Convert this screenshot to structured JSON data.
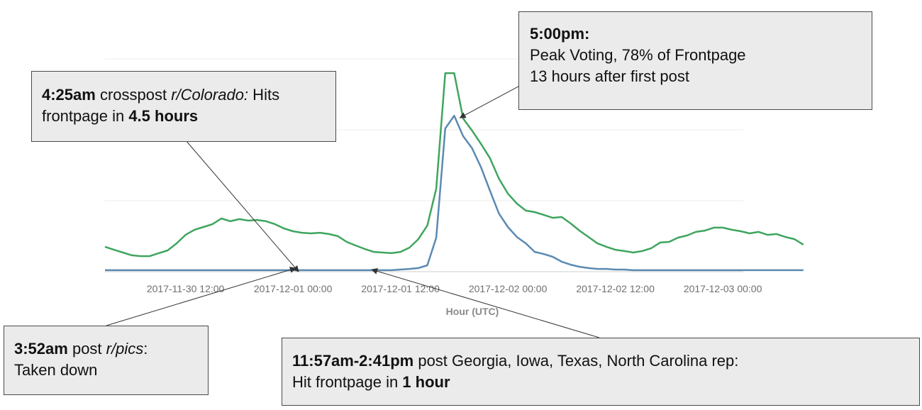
{
  "chart_data": {
    "type": "line",
    "xlabel": "Hour (UTC)",
    "ylabel": "",
    "x_start": "2017-11-30 03:00",
    "x_step_hours": 1,
    "xticks": [
      "2017-11-30 12:00",
      "2017-12-01 00:00",
      "2017-12-01 12:00",
      "2017-12-02 00:00",
      "2017-12-02 12:00",
      "2017-12-03 00:00"
    ],
    "ylim": [
      0,
      100
    ],
    "grid": true,
    "series": [
      {
        "color": "#3fa55e",
        "values": [
          11.7,
          10.3,
          9.0,
          7.7,
          7.3,
          7.3,
          8.7,
          10.0,
          13.3,
          17.3,
          19.7,
          21.0,
          22.3,
          25.0,
          23.7,
          24.7,
          24.0,
          24.3,
          23.7,
          22.3,
          20.3,
          19.0,
          18.3,
          18.0,
          18.3,
          17.7,
          16.7,
          14.0,
          12.3,
          10.7,
          9.3,
          9.0,
          8.7,
          9.3,
          11.3,
          15.3,
          21.7,
          39.0,
          93.3,
          93.3,
          72.0,
          66.3,
          60.0,
          53.3,
          43.7,
          36.7,
          32.0,
          28.7,
          28.0,
          26.7,
          25.3,
          25.7,
          22.7,
          19.3,
          16.3,
          13.3,
          11.7,
          10.3,
          9.7,
          9.0,
          9.7,
          11.0,
          13.7,
          14.0,
          16.0,
          17.0,
          18.7,
          19.3,
          20.7,
          20.7,
          19.7,
          19.0,
          18.0,
          18.7,
          17.3,
          17.7,
          16.3,
          15.3,
          12.7
        ]
      },
      {
        "color": "#5b8ab2",
        "values": [
          0.7,
          0.7,
          0.7,
          0.7,
          0.7,
          0.7,
          0.7,
          0.7,
          0.7,
          0.7,
          0.7,
          0.7,
          0.7,
          0.7,
          0.7,
          0.7,
          0.7,
          0.7,
          0.7,
          0.7,
          0.7,
          0.7,
          0.7,
          0.7,
          0.7,
          0.7,
          0.7,
          0.7,
          0.7,
          0.7,
          0.7,
          0.7,
          0.7,
          1.0,
          1.3,
          1.7,
          3.0,
          16.0,
          67.3,
          73.3,
          63.7,
          58.0,
          49.0,
          38.0,
          27.3,
          21.0,
          16.3,
          13.3,
          9.3,
          8.3,
          7.0,
          4.7,
          3.3,
          2.3,
          1.7,
          1.3,
          1.3,
          1.0,
          1.0,
          0.7,
          0.7,
          0.7,
          0.7,
          0.7,
          0.7,
          0.7,
          0.7,
          0.7,
          0.7,
          0.7,
          0.7,
          0.7,
          0.7,
          0.7,
          0.7,
          0.7,
          0.7,
          0.7,
          0.7
        ]
      }
    ]
  },
  "callouts": {
    "peak": {
      "time": "5:00pm:",
      "line2": "Peak Voting, 78% of Frontpage",
      "line3": "13 hours after first post"
    },
    "colorado": {
      "time": "4:25am",
      "text1": " crosspost ",
      "subreddit": "r/Colorado:",
      "text2": " Hits frontpage in ",
      "duration": "4.5 hours"
    },
    "pics": {
      "time": "3:52am",
      "text1": " post ",
      "subreddit": "r/pics",
      "text2": ":",
      "line2": "Taken down"
    },
    "states": {
      "time": "11:57am-2:41pm",
      "text1": " post Georgia, Iowa, Texas, North Carolina rep:",
      "text2": "Hit frontpage in ",
      "duration": "1 hour"
    }
  }
}
